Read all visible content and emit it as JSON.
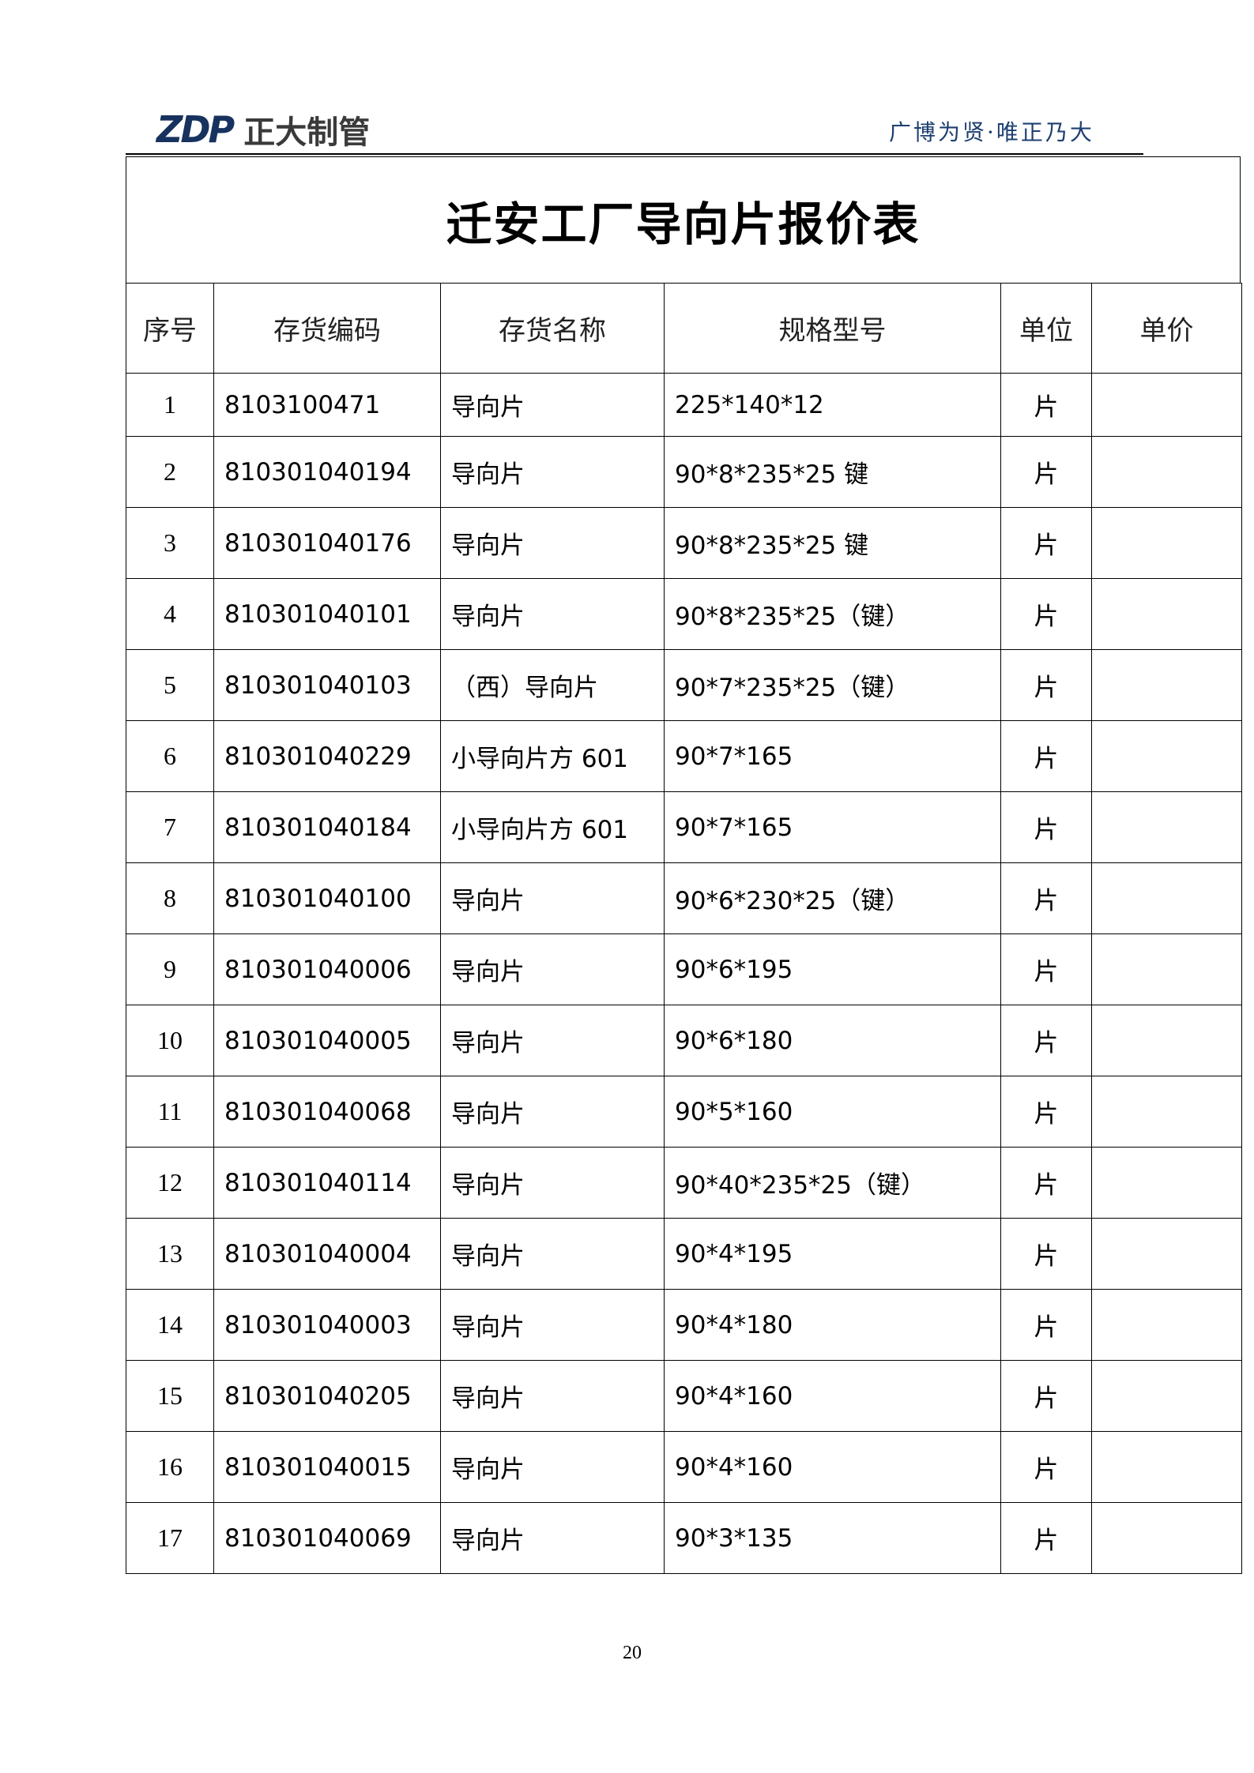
{
  "header": {
    "logo_mark": "ZDP",
    "logo_text": "正大制管",
    "slogan": "广博为贤·唯正乃大",
    "brand_color": "#17325e"
  },
  "title": "迁安工厂导向片报价表",
  "table": {
    "columns": [
      "序号",
      "存货编码",
      "存货名称",
      "规格型号",
      "单位",
      "单价"
    ],
    "rows": [
      {
        "idx": "1",
        "code": "8103100471",
        "name": "导向片",
        "spec": "225*140*12",
        "unit": "片",
        "price": ""
      },
      {
        "idx": "2",
        "code": "810301040194",
        "name": "导向片",
        "spec": "90*8*235*25 键",
        "unit": "片",
        "price": ""
      },
      {
        "idx": "3",
        "code": "810301040176",
        "name": "导向片",
        "spec": "90*8*235*25 键",
        "unit": "片",
        "price": ""
      },
      {
        "idx": "4",
        "code": "810301040101",
        "name": "导向片",
        "spec": "90*8*235*25（键）",
        "unit": "片",
        "price": ""
      },
      {
        "idx": "5",
        "code": "810301040103",
        "name": "（西）导向片",
        "spec": "90*7*235*25（键）",
        "unit": "片",
        "price": ""
      },
      {
        "idx": "6",
        "code": "810301040229",
        "name": "小导向片方 601",
        "spec": "90*7*165",
        "unit": "片",
        "price": ""
      },
      {
        "idx": "7",
        "code": "810301040184",
        "name": "小导向片方 601",
        "spec": "90*7*165",
        "unit": "片",
        "price": ""
      },
      {
        "idx": "8",
        "code": "810301040100",
        "name": "导向片",
        "spec": "90*6*230*25（键）",
        "unit": "片",
        "price": ""
      },
      {
        "idx": "9",
        "code": "810301040006",
        "name": "导向片",
        "spec": "90*6*195",
        "unit": "片",
        "price": ""
      },
      {
        "idx": "10",
        "code": "810301040005",
        "name": "导向片",
        "spec": "90*6*180",
        "unit": "片",
        "price": ""
      },
      {
        "idx": "11",
        "code": "810301040068",
        "name": "导向片",
        "spec": "90*5*160",
        "unit": "片",
        "price": ""
      },
      {
        "idx": "12",
        "code": "810301040114",
        "name": "导向片",
        "spec": "90*40*235*25（键）",
        "unit": "片",
        "price": ""
      },
      {
        "idx": "13",
        "code": "810301040004",
        "name": "导向片",
        "spec": "90*4*195",
        "unit": "片",
        "price": ""
      },
      {
        "idx": "14",
        "code": "810301040003",
        "name": "导向片",
        "spec": "90*4*180",
        "unit": "片",
        "price": ""
      },
      {
        "idx": "15",
        "code": "810301040205",
        "name": "导向片",
        "spec": "90*4*160",
        "unit": "片",
        "price": ""
      },
      {
        "idx": "16",
        "code": "810301040015",
        "name": "导向片",
        "spec": "90*4*160",
        "unit": "片",
        "price": ""
      },
      {
        "idx": "17",
        "code": "810301040069",
        "name": "导向片",
        "spec": "90*3*135",
        "unit": "片",
        "price": ""
      }
    ]
  },
  "footer": {
    "page_number": "20"
  }
}
